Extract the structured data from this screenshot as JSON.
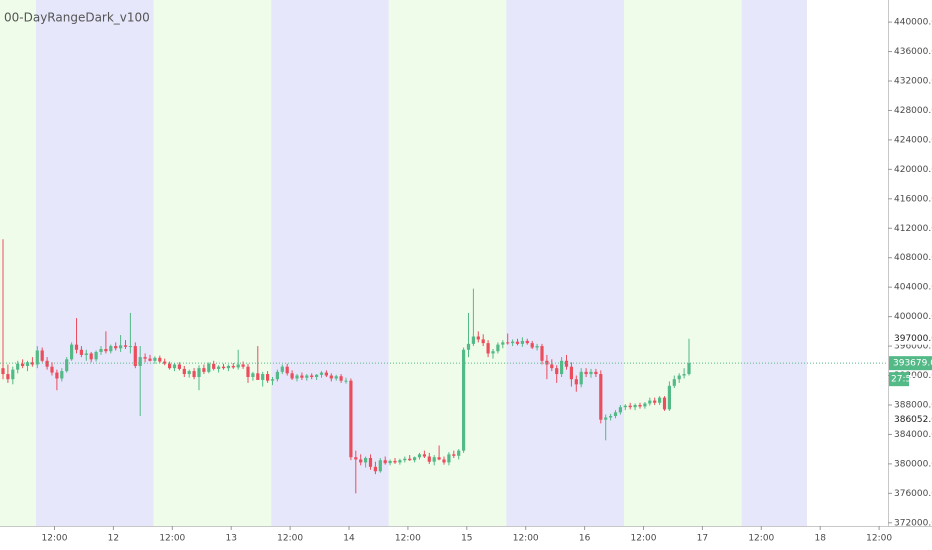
{
  "chart_data": {
    "type": "candlestick",
    "title": "00-DayRangeDark_v100",
    "up_color": "#53b987",
    "down_color": "#eb4d5c",
    "session_colors": [
      "#effcea",
      "#e6e7fb"
    ],
    "ylim": [
      371700,
      443000
    ],
    "yticks": [
      {
        "value": 372000,
        "label": "372000.00"
      },
      {
        "value": 376000,
        "label": "376000.00"
      },
      {
        "value": 380000,
        "label": "380000.00"
      },
      {
        "value": 384000,
        "label": "384000.00"
      },
      {
        "value": 388000,
        "label": "388000.00"
      },
      {
        "value": 392000,
        "label": "392000.00"
      },
      {
        "value": 396000,
        "label": "396000.00"
      },
      {
        "value": 400000,
        "label": "400000.00"
      },
      {
        "value": 404000,
        "label": "404000.00"
      },
      {
        "value": 408000,
        "label": "408000.00"
      },
      {
        "value": 412000,
        "label": "412000.00"
      },
      {
        "value": 416000,
        "label": "416000.00"
      },
      {
        "value": 420000,
        "label": "420000.00"
      },
      {
        "value": 424000,
        "label": "424000.00"
      },
      {
        "value": 428000,
        "label": "428000.00"
      },
      {
        "value": 432000,
        "label": "432000.00"
      },
      {
        "value": 436000,
        "label": "436000.00"
      },
      {
        "value": 440000,
        "label": "440000.00"
      }
    ],
    "x_labels": [
      "12:00",
      "12",
      "12:00",
      "13",
      "12:00",
      "14",
      "12:00",
      "15",
      "12:00",
      "16",
      "12:00",
      "17",
      "12:00",
      "18",
      "12:00"
    ],
    "price_labels": [
      {
        "value": 397000,
        "label": "397000.00"
      },
      {
        "value": 386052,
        "label": "386052.00"
      }
    ],
    "last_price": {
      "value": 393679,
      "label": "393679.00"
    },
    "countdown": "27:59",
    "ohlc": [
      [
        393000,
        410500,
        391500,
        392200
      ],
      [
        392200,
        393500,
        391000,
        391500
      ],
      [
        391500,
        393200,
        390800,
        392800
      ],
      [
        392800,
        394000,
        392300,
        393600
      ],
      [
        393600,
        394200,
        393000,
        393300
      ],
      [
        393300,
        394000,
        392600,
        393800
      ],
      [
        393800,
        394500,
        393200,
        393500
      ],
      [
        393500,
        396000,
        393000,
        395400
      ],
      [
        395400,
        395800,
        393800,
        394000
      ],
      [
        394000,
        394500,
        392800,
        393200
      ],
      [
        393200,
        393800,
        392000,
        392400
      ],
      [
        392400,
        392800,
        390000,
        391600
      ],
      [
        391600,
        393000,
        391200,
        392600
      ],
      [
        392600,
        394500,
        392400,
        394200
      ],
      [
        394200,
        396500,
        394000,
        396200
      ],
      [
        396200,
        399800,
        395000,
        395500
      ],
      [
        395500,
        396000,
        394500,
        394800
      ],
      [
        394800,
        395500,
        394000,
        395000
      ],
      [
        395000,
        395200,
        393800,
        394200
      ],
      [
        394200,
        395400,
        393900,
        395200
      ],
      [
        395200,
        396000,
        394800,
        395600
      ],
      [
        395600,
        398000,
        395000,
        395300
      ],
      [
        395300,
        396200,
        395000,
        396000
      ],
      [
        396000,
        396500,
        395400,
        395700
      ],
      [
        395700,
        397500,
        395200,
        396100
      ],
      [
        396100,
        396800,
        395600,
        395900
      ],
      [
        395900,
        400500,
        395000,
        396000
      ],
      [
        396000,
        396500,
        393000,
        393300
      ],
      [
        393300,
        396000,
        386500,
        394500
      ],
      [
        394500,
        395000,
        393800,
        394300
      ],
      [
        394300,
        394800,
        393900,
        394000
      ],
      [
        394000,
        394600,
        393600,
        394400
      ],
      [
        394400,
        394700,
        393700,
        393900
      ],
      [
        393900,
        394300,
        393400,
        393600
      ],
      [
        393600,
        393900,
        392800,
        393000
      ],
      [
        393000,
        393700,
        392600,
        393500
      ],
      [
        393500,
        393800,
        392700,
        392900
      ],
      [
        392900,
        393300,
        391800,
        392200
      ],
      [
        392200,
        392800,
        391700,
        392600
      ],
      [
        392600,
        393000,
        391500,
        391800
      ],
      [
        391800,
        393400,
        390000,
        393000
      ],
      [
        393000,
        393500,
        392200,
        392500
      ],
      [
        392500,
        393800,
        392300,
        393600
      ],
      [
        393600,
        394000,
        392700,
        392900
      ],
      [
        392900,
        393400,
        392400,
        393200
      ],
      [
        393200,
        393600,
        392800,
        393000
      ],
      [
        393000,
        393500,
        392600,
        393300
      ],
      [
        393300,
        393700,
        392900,
        393100
      ],
      [
        393100,
        395500,
        392800,
        393500
      ],
      [
        393500,
        393900,
        392900,
        393200
      ],
      [
        393200,
        393600,
        391000,
        391800
      ],
      [
        391800,
        392500,
        391300,
        392300
      ],
      [
        392300,
        396000,
        391500,
        391400
      ],
      [
        391400,
        392500,
        390500,
        392200
      ],
      [
        392200,
        392600,
        391000,
        391300
      ],
      [
        391300,
        391800,
        390700,
        391500
      ],
      [
        391500,
        392800,
        391200,
        392500
      ],
      [
        392500,
        393500,
        392200,
        393200
      ],
      [
        393200,
        393600,
        392000,
        392300
      ],
      [
        392300,
        392700,
        391400,
        391600
      ],
      [
        391600,
        392200,
        391200,
        392000
      ],
      [
        392000,
        392400,
        391400,
        391700
      ],
      [
        391700,
        392200,
        391300,
        392000
      ],
      [
        392000,
        392300,
        391500,
        391800
      ],
      [
        391800,
        392200,
        391400,
        392100
      ],
      [
        392100,
        392600,
        391700,
        392400
      ],
      [
        392400,
        392700,
        391800,
        392000
      ],
      [
        392000,
        392300,
        391200,
        391600
      ],
      [
        391600,
        392100,
        391300,
        391900
      ],
      [
        391900,
        392200,
        391000,
        391300
      ],
      [
        391300,
        391700,
        390900,
        391300
      ],
      [
        391300,
        391600,
        380500,
        380900
      ],
      [
        380900,
        381800,
        376000,
        380600
      ],
      [
        380600,
        381300,
        379800,
        380200
      ],
      [
        380200,
        381000,
        379500,
        380800
      ],
      [
        380800,
        381300,
        379200,
        379600
      ],
      [
        379600,
        380300,
        378600,
        379000
      ],
      [
        379000,
        380800,
        378800,
        380500
      ],
      [
        380500,
        381000,
        379900,
        380100
      ],
      [
        380100,
        380600,
        379800,
        380400
      ],
      [
        380400,
        380800,
        380000,
        380200
      ],
      [
        380200,
        380700,
        379900,
        380500
      ],
      [
        380500,
        381000,
        380200,
        380700
      ],
      [
        380700,
        381200,
        380400,
        380500
      ],
      [
        380500,
        381000,
        380200,
        380900
      ],
      [
        380900,
        381500,
        380600,
        381300
      ],
      [
        381300,
        381800,
        380800,
        381000
      ],
      [
        381000,
        381500,
        380000,
        380300
      ],
      [
        380300,
        381200,
        379800,
        380900
      ],
      [
        380900,
        382500,
        380500,
        380600
      ],
      [
        380600,
        381000,
        379900,
        380200
      ],
      [
        380200,
        381600,
        379800,
        381300
      ],
      [
        381300,
        381800,
        380800,
        381100
      ],
      [
        381100,
        382000,
        380600,
        381800
      ],
      [
        381800,
        395800,
        381500,
        395500
      ],
      [
        395500,
        400500,
        394500,
        396300
      ],
      [
        396300,
        403800,
        396000,
        397300
      ],
      [
        397300,
        398000,
        396500,
        396900
      ],
      [
        396900,
        397600,
        396000,
        396400
      ],
      [
        396400,
        396800,
        394500,
        395000
      ],
      [
        395000,
        395600,
        394300,
        395300
      ],
      [
        395300,
        396500,
        395000,
        396200
      ],
      [
        396200,
        396800,
        395700,
        396500
      ],
      [
        396500,
        397700,
        396200,
        396400
      ],
      [
        396400,
        396900,
        396000,
        396600
      ],
      [
        396600,
        397000,
        396100,
        396300
      ],
      [
        396300,
        397200,
        395900,
        396700
      ],
      [
        396700,
        397000,
        396200,
        396400
      ],
      [
        396400,
        396700,
        395600,
        395800
      ],
      [
        395800,
        396300,
        395400,
        396000
      ],
      [
        396000,
        396300,
        393500,
        394000
      ],
      [
        394000,
        394800,
        391500,
        393500
      ],
      [
        393500,
        394200,
        392600,
        393000
      ],
      [
        393000,
        393400,
        391000,
        392200
      ],
      [
        392200,
        394500,
        391800,
        394000
      ],
      [
        394000,
        394800,
        392800,
        393200
      ],
      [
        393200,
        393800,
        390500,
        391500
      ],
      [
        391500,
        392000,
        389800,
        390800
      ],
      [
        390800,
        393000,
        390400,
        392500
      ],
      [
        392500,
        393000,
        391800,
        392200
      ],
      [
        392200,
        392900,
        391700,
        392500
      ],
      [
        392500,
        392900,
        391800,
        392200
      ],
      [
        392200,
        392700,
        385500,
        386000
      ],
      [
        386000,
        386700,
        383200,
        386300
      ],
      [
        386300,
        386800,
        385900,
        386500
      ],
      [
        386500,
        387300,
        386200,
        387000
      ],
      [
        387000,
        388000,
        386700,
        387700
      ],
      [
        387700,
        388100,
        387300,
        387900
      ],
      [
        387900,
        388300,
        387400,
        387700
      ],
      [
        387700,
        388200,
        387300,
        388000
      ],
      [
        388000,
        388300,
        387500,
        387800
      ],
      [
        387800,
        388400,
        387500,
        388200
      ],
      [
        388200,
        389000,
        387900,
        388600
      ],
      [
        388600,
        389000,
        388000,
        388300
      ],
      [
        388300,
        389200,
        388000,
        389000
      ],
      [
        389000,
        389200,
        387200,
        387400
      ],
      [
        387400,
        391200,
        387200,
        390600
      ],
      [
        390600,
        392000,
        390300,
        391500
      ],
      [
        391500,
        392300,
        391000,
        392000
      ],
      [
        392000,
        393000,
        391600,
        392200
      ],
      [
        392200,
        397000,
        392000,
        393679
      ]
    ]
  }
}
